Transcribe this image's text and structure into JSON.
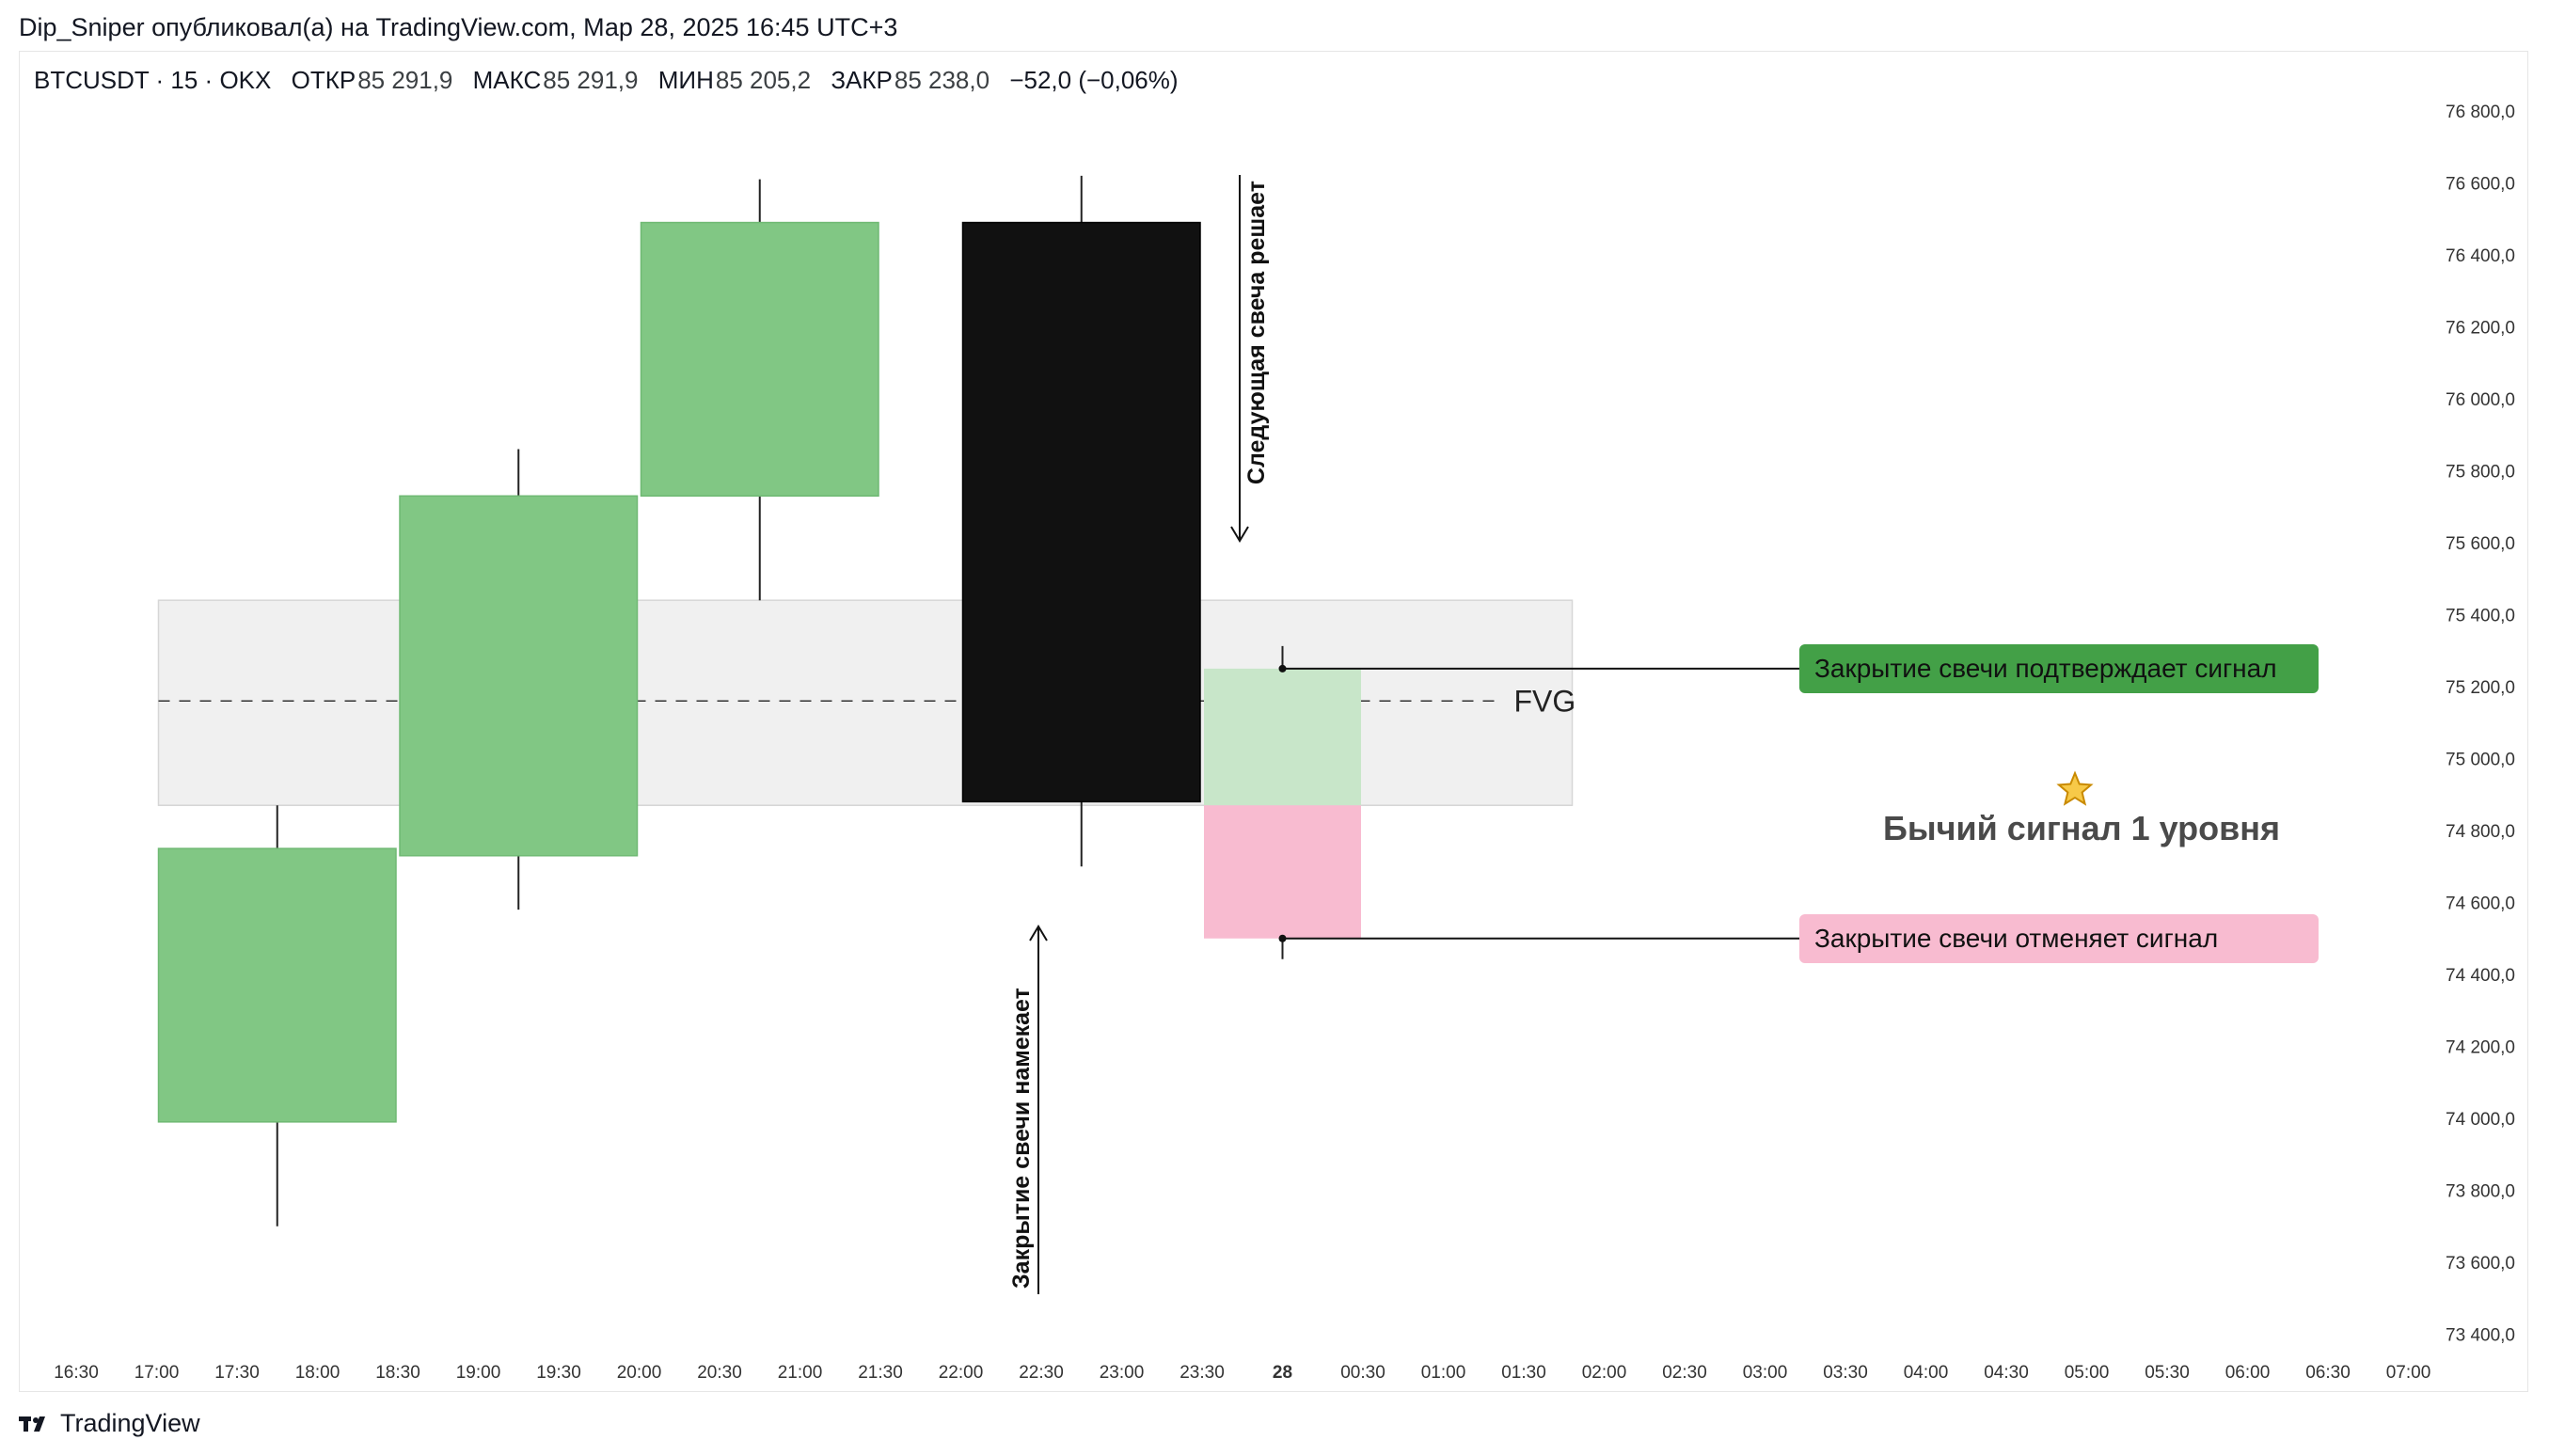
{
  "header": {
    "published_line": "Dip_Sniper опубликовал(а) на TradingView.com, Мар 28, 2025 16:45 UTC+3"
  },
  "symbol_bar": {
    "symbol": "BTCUSDT · 15 · OKX",
    "open_label": "ОТКР",
    "open_value": "85 291,9",
    "high_label": "МАКС",
    "high_value": "85 291,9",
    "low_label": "МИН",
    "low_value": "85 205,2",
    "close_label": "ЗАКР",
    "close_value": "85 238,0",
    "change": "−52,0 (−0,06%)"
  },
  "footer": {
    "brand": "TradingView"
  },
  "annotations": {
    "next_candle": "Следующая свеча решает",
    "close_hints": "Закрытие свечи намекает",
    "fvg": "FVG",
    "confirm": "Закрытие свечи подтверждает сигнал",
    "cancel": "Закрытие свечи отменяет сигнал",
    "signal": "Бычий сигнал 1 уровня"
  },
  "colors": {
    "bull": "#81c784",
    "bear": "#111111",
    "confirm_bg": "#43a047",
    "confirm_candle": "#c8e6c9",
    "cancel_bg": "#f8bbd0",
    "fvg_zone": "#f0f0f0"
  },
  "chart_data": {
    "type": "candlestick",
    "y_ticks": [
      "76 800,0",
      "76 600,0",
      "76 400,0",
      "76 200,0",
      "76 000,0",
      "75 800,0",
      "75 600,0",
      "75 400,0",
      "75 200,0",
      "75 000,0",
      "74 800,0",
      "74 600,0",
      "74 400,0",
      "74 200,0",
      "74 000,0",
      "73 800,0",
      "73 600,0",
      "73 400,0"
    ],
    "y_tick_values": [
      76800,
      76600,
      76400,
      76200,
      76000,
      75800,
      75600,
      75400,
      75200,
      75000,
      74800,
      74600,
      74400,
      74200,
      74000,
      73800,
      73600,
      73400
    ],
    "x_ticks": [
      "16:30",
      "17:00",
      "17:30",
      "18:00",
      "18:30",
      "19:00",
      "19:30",
      "20:00",
      "20:30",
      "21:00",
      "21:30",
      "22:00",
      "22:30",
      "23:00",
      "23:30",
      "28",
      "00:30",
      "01:00",
      "01:30",
      "02:00",
      "02:30",
      "03:00",
      "03:30",
      "04:00",
      "04:30",
      "05:00",
      "05:30",
      "06:00",
      "06:30",
      "07:00"
    ],
    "candles": [
      {
        "start": "17:00",
        "end": "18:30",
        "open": 73990,
        "close": 74750,
        "high": 74870,
        "low": 73700,
        "dir": "up"
      },
      {
        "start": "18:30",
        "end": "20:00",
        "open": 74730,
        "close": 75730,
        "high": 75860,
        "low": 74580,
        "dir": "up"
      },
      {
        "start": "20:00",
        "end": "21:30",
        "open": 75730,
        "close": 76490,
        "high": 76610,
        "low": 75440,
        "dir": "up"
      },
      {
        "start": "22:00",
        "end": "23:30",
        "open": 76490,
        "close": 74880,
        "high": 76620,
        "low": 74700,
        "dir": "down"
      }
    ],
    "next_candle_confirm": {
      "start": "23:30",
      "end": "00:30",
      "top": 75250,
      "bottom": 74870
    },
    "next_candle_cancel": {
      "start": "23:30",
      "end": "00:30",
      "top": 74870,
      "bottom": 74500
    },
    "fvg_zone": {
      "start": "17:00",
      "end": "02:00",
      "top": 75440,
      "bottom": 74870,
      "mid": 75160
    },
    "confirm_level": 75250,
    "cancel_level": 74500
  }
}
